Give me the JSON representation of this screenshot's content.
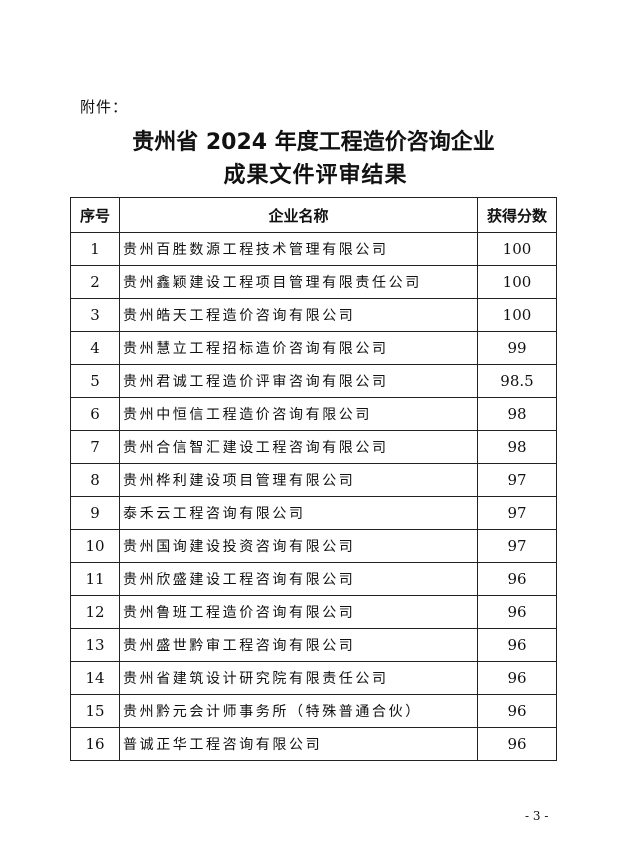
{
  "attachment_label": "附件：",
  "title_line1": "贵州省 2024 年度工程造价咨询企业",
  "title_line2": "成果文件评审结果",
  "table": {
    "headers": [
      "序号",
      "企业名称",
      "获得分数"
    ],
    "rows": [
      {
        "no": "1",
        "name": "贵州百胜数源工程技术管理有限公司",
        "score": "100"
      },
      {
        "no": "2",
        "name": "贵州鑫颖建设工程项目管理有限责任公司",
        "score": "100"
      },
      {
        "no": "3",
        "name": "贵州皓天工程造价咨询有限公司",
        "score": "100"
      },
      {
        "no": "4",
        "name": "贵州慧立工程招标造价咨询有限公司",
        "score": "99"
      },
      {
        "no": "5",
        "name": "贵州君诚工程造价评审咨询有限公司",
        "score": "98.5"
      },
      {
        "no": "6",
        "name": "贵州中恒信工程造价咨询有限公司",
        "score": "98"
      },
      {
        "no": "7",
        "name": "贵州合信智汇建设工程咨询有限公司",
        "score": "98"
      },
      {
        "no": "8",
        "name": "贵州桦利建设项目管理有限公司",
        "score": "97"
      },
      {
        "no": "9",
        "name": "泰禾云工程咨询有限公司",
        "score": "97"
      },
      {
        "no": "10",
        "name": "贵州国询建设投资咨询有限公司",
        "score": "97"
      },
      {
        "no": "11",
        "name": "贵州欣盛建设工程咨询有限公司",
        "score": "96"
      },
      {
        "no": "12",
        "name": "贵州鲁班工程造价咨询有限公司",
        "score": "96"
      },
      {
        "no": "13",
        "name": "贵州盛世黔审工程咨询有限公司",
        "score": "96"
      },
      {
        "no": "14",
        "name": "贵州省建筑设计研究院有限责任公司",
        "score": "96"
      },
      {
        "no": "15",
        "name": "贵州黔元会计师事务所（特殊普通合伙）",
        "score": "96"
      },
      {
        "no": "16",
        "name": "普诚正华工程咨询有限公司",
        "score": "96"
      }
    ]
  },
  "page_number": "- 3 -"
}
